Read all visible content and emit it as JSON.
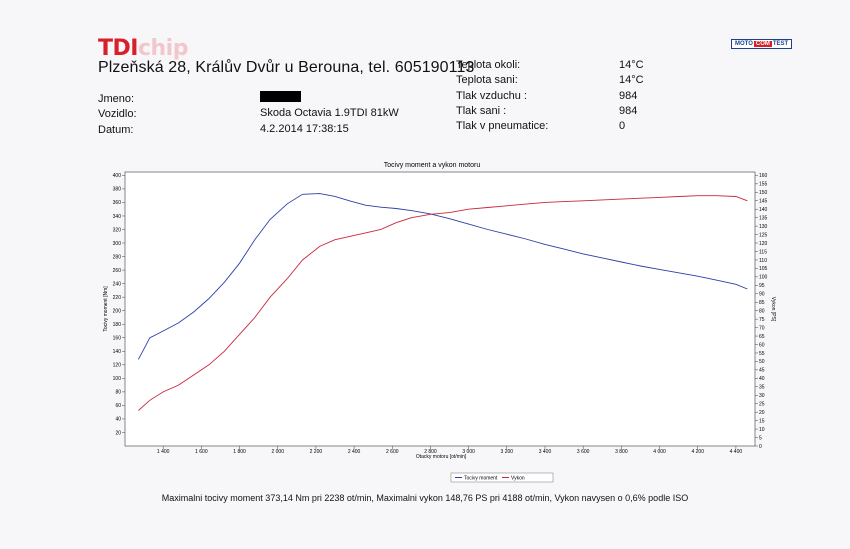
{
  "header": {
    "logo_tdi": "TDI",
    "logo_chip": "chip",
    "brand_left": "MOTO",
    "brand_mid": "COM",
    "brand_right": "TEST",
    "address": "Plzeňská 28, Králův Dvůr u Berouna, tel. 605190113"
  },
  "info": {
    "jmeno_label": "Jmeno:",
    "vozidlo_label": "Vozidlo:",
    "vozidlo_value": "Skoda Octavia 1.9TDI 81kW",
    "datum_label": "Datum:",
    "datum_value": "4.2.2014 17:38:15"
  },
  "conditions": [
    {
      "label": "Teplota okoli:",
      "value": "14°C"
    },
    {
      "label": "Teplota sani:",
      "value": "14°C"
    },
    {
      "label": "Tlak vzduchu :",
      "value": "984"
    },
    {
      "label": "Tlak sani :",
      "value": "984"
    },
    {
      "label": "Tlak v pneumatice:",
      "value": "0"
    }
  ],
  "chart_data": {
    "type": "line",
    "title": "Tocivy moment a vykon motoru",
    "xlabel": "Otacky motoru [ot/min]",
    "ylabel": "Tocivy moment [Nm]",
    "y2label": "Vykon [PS]",
    "xlim": [
      1200,
      4500
    ],
    "ylim": [
      0,
      405
    ],
    "y2lim": [
      0,
      162
    ],
    "x_ticks": [
      "1 400",
      "1 600",
      "1 800",
      "2 000",
      "2 200",
      "2 400",
      "2 600",
      "2 800",
      "3 000",
      "3 200",
      "3 400",
      "3 600",
      "3 800",
      "4 000",
      "4 200",
      "4 400"
    ],
    "y_ticks": [
      20,
      40,
      60,
      80,
      100,
      120,
      140,
      160,
      180,
      200,
      220,
      240,
      260,
      280,
      300,
      320,
      340,
      360,
      380,
      400
    ],
    "y2_ticks": [
      0,
      5,
      10,
      15,
      20,
      25,
      30,
      35,
      40,
      45,
      50,
      55,
      60,
      65,
      70,
      75,
      80,
      85,
      90,
      95,
      100,
      105,
      110,
      115,
      120,
      125,
      130,
      135,
      140,
      145,
      150,
      155,
      160
    ],
    "grid": false,
    "legend": "bottom-center",
    "series": [
      {
        "name": "Tocivy moment",
        "axis": "left",
        "color": "#2d3fa8",
        "x": [
          1270,
          1330,
          1400,
          1480,
          1560,
          1640,
          1720,
          1800,
          1880,
          1960,
          2050,
          2130,
          2220,
          2300,
          2380,
          2460,
          2540,
          2620,
          2700,
          2800,
          2900,
          3000,
          3100,
          3200,
          3300,
          3400,
          3500,
          3600,
          3700,
          3800,
          3900,
          4000,
          4100,
          4200,
          4300,
          4400,
          4460
        ],
        "y": [
          128,
          160,
          170,
          182,
          198,
          218,
          242,
          270,
          305,
          335,
          358,
          372,
          373,
          369,
          362,
          356,
          353,
          351,
          348,
          343,
          336,
          328,
          320,
          313,
          306,
          298,
          291,
          284,
          278,
          272,
          266,
          261,
          256,
          251,
          245,
          239,
          232
        ]
      },
      {
        "name": "Vykon",
        "axis": "right",
        "color": "#c8283c",
        "x": [
          1270,
          1330,
          1400,
          1480,
          1560,
          1640,
          1720,
          1800,
          1880,
          1960,
          2050,
          2130,
          2220,
          2300,
          2380,
          2460,
          2540,
          2620,
          2700,
          2800,
          2900,
          3000,
          3100,
          3200,
          3300,
          3400,
          3500,
          3600,
          3700,
          3800,
          3900,
          4000,
          4100,
          4200,
          4300,
          4400,
          4460
        ],
        "y": [
          21,
          27,
          32,
          36,
          42,
          48,
          56,
          66,
          76,
          88,
          99,
          110,
          118,
          122,
          124,
          126,
          128,
          132,
          135,
          137,
          138,
          140,
          141,
          142,
          143,
          144,
          144.5,
          145,
          145.5,
          146,
          146.5,
          147,
          147.5,
          148,
          148,
          147.5,
          145
        ]
      }
    ]
  },
  "footer": "Maximalni tocivy moment 373,14 Nm pri 2238 ot/min,  Maximalni vykon 148,76 PS pri 4188 ot/min,  Vykon navysen o 0,6% podle ISO"
}
